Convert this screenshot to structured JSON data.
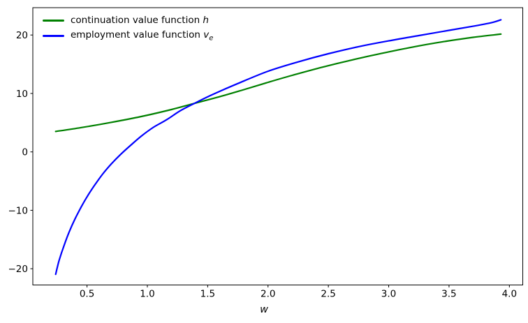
{
  "figure": {
    "background": "#ffffff"
  },
  "legend": {
    "entries": [
      {
        "text": "continuation value function ",
        "math": "h",
        "sub": "",
        "color": "#008000"
      },
      {
        "text": "employment value function ",
        "math": "v",
        "sub": "e",
        "color": "#0000ff"
      }
    ]
  },
  "chart_data": {
    "type": "line",
    "title": "",
    "xlabel": "w",
    "ylabel": "",
    "xlim": [
      0.051,
      4.111
    ],
    "ylim": [
      -22.78,
      24.68
    ],
    "grid": false,
    "legend_position": "upper left",
    "axis_color": "#000000",
    "x_ticks": {
      "values": [
        0.5,
        1.0,
        1.5,
        2.0,
        2.5,
        3.0,
        3.5,
        4.0
      ],
      "labels": [
        "0.5",
        "1.0",
        "1.5",
        "2.0",
        "2.5",
        "3.0",
        "3.5",
        "4.0"
      ]
    },
    "y_ticks": {
      "values": [
        -20,
        -10,
        0,
        10,
        20
      ],
      "labels": [
        "−20",
        "−10",
        "0",
        "10",
        "20"
      ]
    },
    "series": [
      {
        "id": "continuation-h",
        "label": "continuation value function h",
        "color": "#008000",
        "line_width": 2.2,
        "points": [
          [
            0.24,
            3.5
          ],
          [
            0.45,
            4.15
          ],
          [
            0.7,
            5.05
          ],
          [
            0.95,
            6.05
          ],
          [
            1.2,
            7.25
          ],
          [
            1.39,
            8.3
          ],
          [
            1.6,
            9.45
          ],
          [
            1.8,
            10.65
          ],
          [
            2.0,
            11.9
          ],
          [
            2.2,
            13.1
          ],
          [
            2.45,
            14.5
          ],
          [
            2.7,
            15.75
          ],
          [
            2.95,
            16.9
          ],
          [
            3.2,
            17.95
          ],
          [
            3.45,
            18.85
          ],
          [
            3.7,
            19.6
          ],
          [
            3.93,
            20.15
          ]
        ]
      },
      {
        "id": "employment-ve",
        "label": "employment value function v_e",
        "color": "#0000ff",
        "line_width": 2.2,
        "points": [
          [
            0.24,
            -20.95
          ],
          [
            0.27,
            -18.5
          ],
          [
            0.31,
            -16.0
          ],
          [
            0.35,
            -13.8
          ],
          [
            0.4,
            -11.5
          ],
          [
            0.45,
            -9.5
          ],
          [
            0.5,
            -7.7
          ],
          [
            0.56,
            -5.8
          ],
          [
            0.63,
            -3.8
          ],
          [
            0.7,
            -2.1
          ],
          [
            0.78,
            -0.4
          ],
          [
            0.86,
            1.1
          ],
          [
            0.95,
            2.7
          ],
          [
            1.05,
            4.2
          ],
          [
            1.16,
            5.5
          ],
          [
            1.27,
            7.0
          ],
          [
            1.39,
            8.3
          ],
          [
            1.55,
            9.9
          ],
          [
            1.75,
            11.7
          ],
          [
            2.0,
            13.8
          ],
          [
            2.25,
            15.4
          ],
          [
            2.5,
            16.8
          ],
          [
            2.75,
            18.0
          ],
          [
            3.0,
            19.0
          ],
          [
            3.25,
            19.9
          ],
          [
            3.5,
            20.8
          ],
          [
            3.7,
            21.5
          ],
          [
            3.85,
            22.1
          ],
          [
            3.93,
            22.6
          ]
        ]
      }
    ]
  }
}
